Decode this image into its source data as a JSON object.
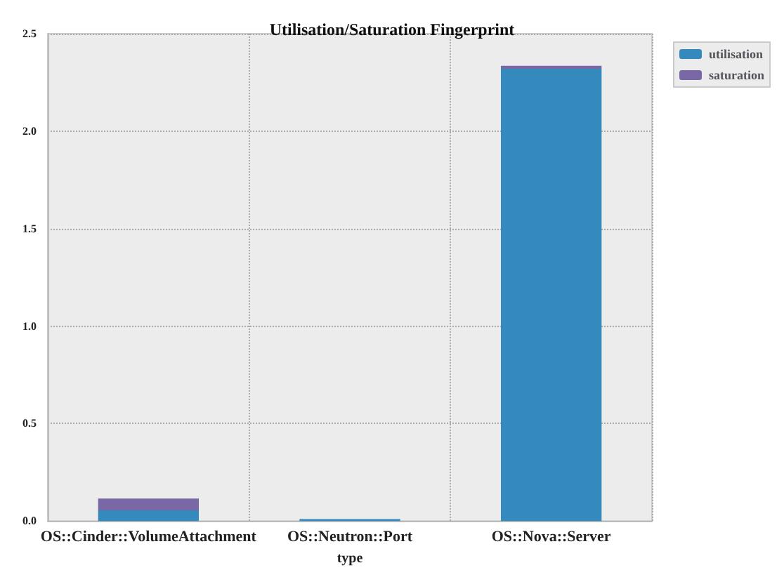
{
  "chart_data": {
    "type": "bar",
    "title": "Utilisation/Saturation Fingerprint",
    "xlabel": "type",
    "categories": [
      "OS::Cinder::VolumeAttachment",
      "OS::Neutron::Port",
      "OS::Nova::Server"
    ],
    "series": [
      {
        "name": "utilisation",
        "color": "#348abd",
        "values": [
          0.055,
          0.01,
          2.32
        ]
      },
      {
        "name": "saturation",
        "color": "#7a68a6",
        "values": [
          0.06,
          0,
          0.015
        ]
      }
    ],
    "stacked": true,
    "ylim": [
      0,
      2.5
    ],
    "yticks": [
      {
        "value": 0,
        "label": "0.0"
      },
      0.5,
      {
        "value": 1,
        "label": "1.0"
      },
      1.5,
      {
        "value": 2,
        "label": "2.0"
      },
      2.5
    ],
    "grid": true,
    "legend": "top right"
  }
}
